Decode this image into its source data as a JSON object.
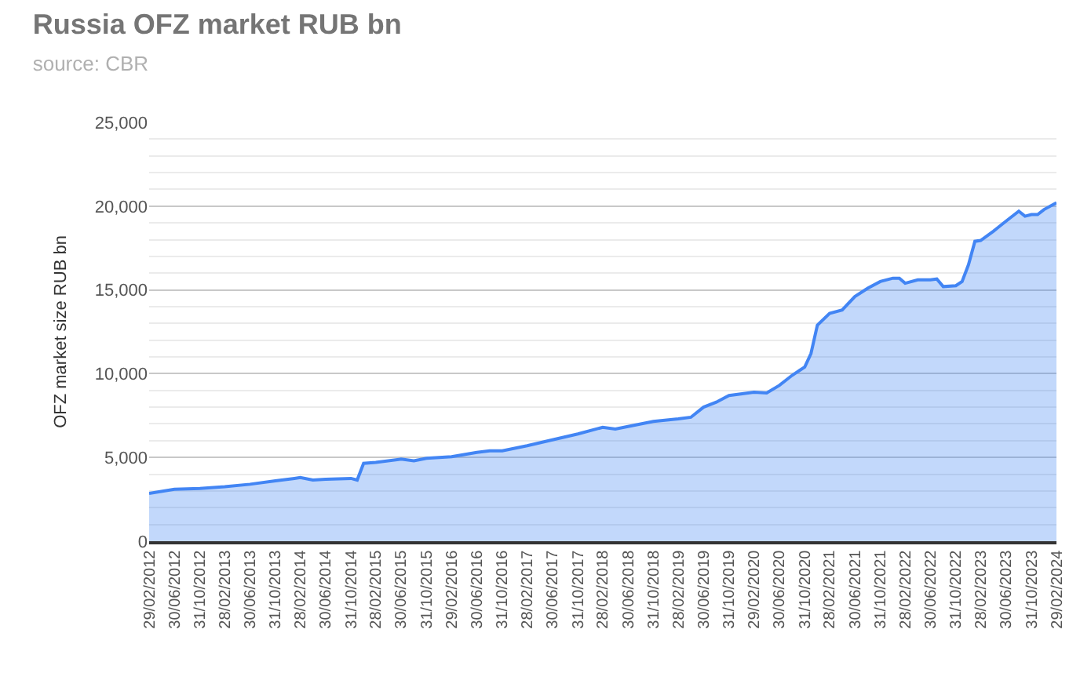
{
  "chart_data": {
    "type": "area",
    "title": "Russia OFZ market RUB bn",
    "subtitle": "source: CBR",
    "ylabel": "OFZ market size RUB bn",
    "x": [
      "2012-02-29",
      "2012-06-30",
      "2012-10-31",
      "2013-02-28",
      "2013-06-30",
      "2013-10-31",
      "2014-01-31",
      "2014-02-28",
      "2014-04-30",
      "2014-06-30",
      "2014-10-31",
      "2014-11-30",
      "2014-12-31",
      "2015-02-28",
      "2015-06-30",
      "2015-08-31",
      "2015-10-31",
      "2016-02-29",
      "2016-06-30",
      "2016-08-31",
      "2016-10-31",
      "2017-02-28",
      "2017-06-30",
      "2017-10-31",
      "2018-02-28",
      "2018-04-30",
      "2018-06-30",
      "2018-10-31",
      "2019-02-28",
      "2019-04-30",
      "2019-06-30",
      "2019-08-31",
      "2019-10-31",
      "2020-02-29",
      "2020-04-30",
      "2020-06-30",
      "2020-08-31",
      "2020-10-31",
      "2020-11-30",
      "2020-12-31",
      "2021-02-28",
      "2021-04-30",
      "2021-06-30",
      "2021-08-31",
      "2021-10-31",
      "2021-12-31",
      "2022-01-31",
      "2022-02-28",
      "2022-04-30",
      "2022-06-30",
      "2022-07-31",
      "2022-08-31",
      "2022-10-31",
      "2022-11-30",
      "2022-12-31",
      "2023-01-31",
      "2023-02-28",
      "2023-04-30",
      "2023-06-30",
      "2023-08-31",
      "2023-09-30",
      "2023-10-31",
      "2023-11-30",
      "2023-12-31",
      "2024-02-29"
    ],
    "series": [
      {
        "color": "#4285f4",
        "values": [
          2850,
          3100,
          3150,
          3250,
          3400,
          3600,
          3750,
          3800,
          3650,
          3700,
          3750,
          3650,
          4650,
          4700,
          4900,
          4800,
          4950,
          5050,
          5300,
          5400,
          5400,
          5700,
          6050,
          6400,
          6800,
          6700,
          6850,
          7150,
          7300,
          7400,
          8000,
          8300,
          8700,
          8900,
          8850,
          9300,
          9900,
          10400,
          11200,
          12900,
          13600,
          13800,
          14600,
          15100,
          15500,
          15700,
          15700,
          15400,
          15600,
          15600,
          15650,
          15200,
          15250,
          15500,
          16500,
          17900,
          17950,
          18500,
          19100,
          19700,
          19400,
          19500,
          19500,
          19800,
          20200
        ]
      }
    ],
    "xlim": [
      "2012-02-29",
      "2024-02-29"
    ],
    "xticks": [
      {
        "value": "2012-02-29",
        "label": "29/02/2012"
      },
      {
        "value": "2012-06-30",
        "label": "30/06/2012"
      },
      {
        "value": "2012-10-31",
        "label": "31/10/2012"
      },
      {
        "value": "2013-02-28",
        "label": "28/02/2013"
      },
      {
        "value": "2013-06-30",
        "label": "30/06/2013"
      },
      {
        "value": "2013-10-31",
        "label": "31/10/2013"
      },
      {
        "value": "2014-02-28",
        "label": "28/02/2014"
      },
      {
        "value": "2014-06-30",
        "label": "30/06/2014"
      },
      {
        "value": "2014-10-31",
        "label": "31/10/2014"
      },
      {
        "value": "2015-02-28",
        "label": "28/02/2015"
      },
      {
        "value": "2015-06-30",
        "label": "30/06/2015"
      },
      {
        "value": "2015-10-31",
        "label": "31/10/2015"
      },
      {
        "value": "2016-02-29",
        "label": "29/02/2016"
      },
      {
        "value": "2016-06-30",
        "label": "30/06/2016"
      },
      {
        "value": "2016-10-31",
        "label": "31/10/2016"
      },
      {
        "value": "2017-02-28",
        "label": "28/02/2017"
      },
      {
        "value": "2017-06-30",
        "label": "30/06/2017"
      },
      {
        "value": "2017-10-31",
        "label": "31/10/2017"
      },
      {
        "value": "2018-02-28",
        "label": "28/02/2018"
      },
      {
        "value": "2018-06-30",
        "label": "30/06/2018"
      },
      {
        "value": "2018-10-31",
        "label": "31/10/2018"
      },
      {
        "value": "2019-02-28",
        "label": "28/02/2019"
      },
      {
        "value": "2019-06-30",
        "label": "30/06/2019"
      },
      {
        "value": "2019-10-31",
        "label": "31/10/2019"
      },
      {
        "value": "2020-02-29",
        "label": "29/02/2020"
      },
      {
        "value": "2020-06-30",
        "label": "30/06/2020"
      },
      {
        "value": "2020-10-31",
        "label": "31/10/2020"
      },
      {
        "value": "2021-02-28",
        "label": "28/02/2021"
      },
      {
        "value": "2021-06-30",
        "label": "30/06/2021"
      },
      {
        "value": "2021-10-31",
        "label": "31/10/2021"
      },
      {
        "value": "2022-02-28",
        "label": "28/02/2022"
      },
      {
        "value": "2022-06-30",
        "label": "30/06/2022"
      },
      {
        "value": "2022-10-31",
        "label": "31/10/2022"
      },
      {
        "value": "2023-02-28",
        "label": "28/02/2023"
      },
      {
        "value": "2023-06-30",
        "label": "30/06/2023"
      },
      {
        "value": "2023-10-31",
        "label": "31/10/2023"
      },
      {
        "value": "2024-02-29",
        "label": "29/02/2024"
      }
    ],
    "ylim": [
      0,
      25000
    ],
    "yticks": [
      {
        "value": 0,
        "label": "0"
      },
      {
        "value": 5000,
        "label": "5,000"
      },
      {
        "value": 10000,
        "label": "10,000"
      },
      {
        "value": 15000,
        "label": "15,000"
      },
      {
        "value": 20000,
        "label": "20,000"
      },
      {
        "value": 25000,
        "label": "25,000"
      }
    ],
    "grid": "y",
    "marker": "none",
    "line_style": "solid"
  }
}
